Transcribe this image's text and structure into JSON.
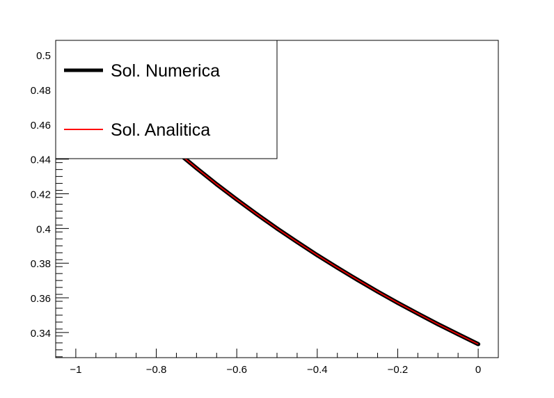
{
  "chart_data": {
    "type": "line",
    "title": "",
    "xlabel": "",
    "ylabel": "",
    "xlim": [
      -1.05,
      0.05
    ],
    "ylim": [
      0.3255,
      0.5085
    ],
    "grid": false,
    "legend_position": "top-left",
    "x_ticks": [
      -1,
      -0.8,
      -0.6,
      -0.4,
      -0.2,
      0
    ],
    "x_tick_labels": [
      "−1",
      "−0.8",
      "−0.6",
      "−0.4",
      "−0.2",
      "0"
    ],
    "y_ticks": [
      0.34,
      0.36,
      0.38,
      0.4,
      0.42,
      0.44,
      0.46,
      0.48,
      0.5
    ],
    "y_tick_labels": [
      "0.34",
      "0.36",
      "0.38",
      "0.4",
      "0.42",
      "0.44",
      "0.46",
      "0.48",
      "0.5"
    ],
    "series": [
      {
        "name": "Sol. Numerica",
        "color": "#000000",
        "x": [
          -1.0,
          -0.95,
          -0.9,
          -0.85,
          -0.8,
          -0.75,
          -0.7,
          -0.65,
          -0.6,
          -0.55,
          -0.5,
          -0.45,
          -0.4,
          -0.35,
          -0.3,
          -0.25,
          -0.2,
          -0.15,
          -0.1,
          -0.05,
          0.0
        ],
        "y": [
          0.5,
          0.4878,
          0.4762,
          0.4651,
          0.4545,
          0.4444,
          0.4348,
          0.4255,
          0.4167,
          0.4082,
          0.4,
          0.3922,
          0.3846,
          0.3774,
          0.3704,
          0.3636,
          0.3571,
          0.3509,
          0.3448,
          0.339,
          0.3333
        ]
      },
      {
        "name": "Sol. Analitica",
        "color": "#ff0000",
        "x": [
          -1.0,
          -0.95,
          -0.9,
          -0.85,
          -0.8,
          -0.75,
          -0.7,
          -0.65,
          -0.6,
          -0.55,
          -0.5,
          -0.45,
          -0.4,
          -0.35,
          -0.3,
          -0.25,
          -0.2,
          -0.15,
          -0.1,
          -0.05,
          0.0
        ],
        "y": [
          0.5,
          0.4878,
          0.4762,
          0.4651,
          0.4545,
          0.4444,
          0.4348,
          0.4255,
          0.4167,
          0.4082,
          0.4,
          0.3922,
          0.3846,
          0.3774,
          0.3704,
          0.3636,
          0.3571,
          0.3509,
          0.3448,
          0.339,
          0.3333
        ]
      }
    ]
  }
}
